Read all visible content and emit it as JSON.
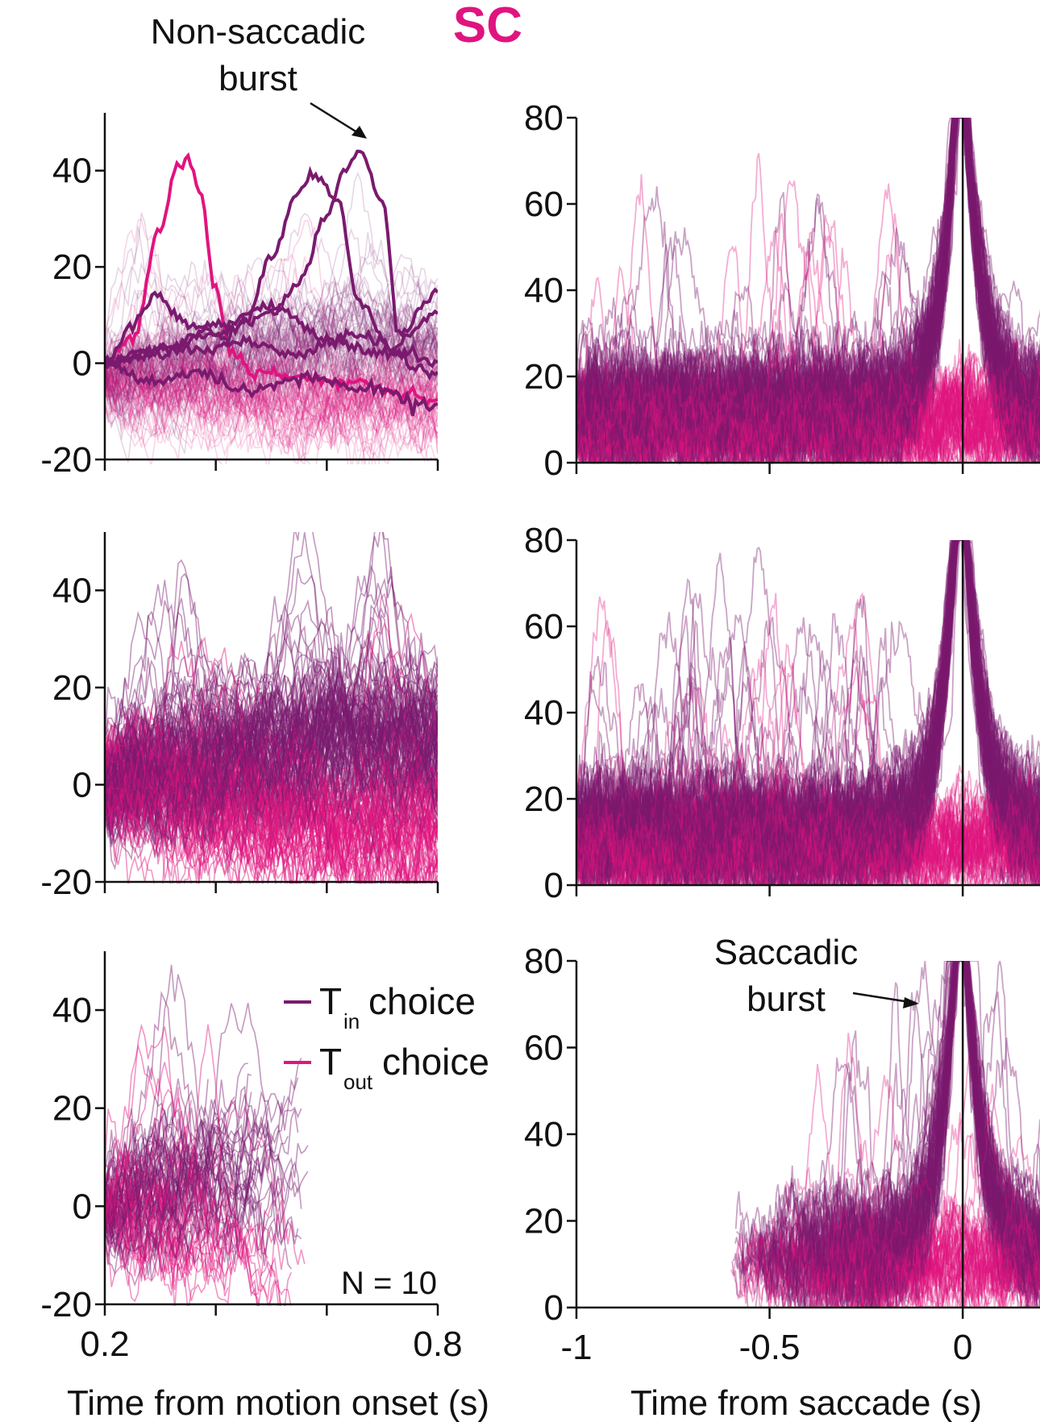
{
  "colors": {
    "tin": "#7a1a6e",
    "tout": "#e0147f",
    "axis": "#111111"
  },
  "chart_data": {
    "type": "line",
    "title": "SC",
    "legend": [
      {
        "key": "tin",
        "prefix": "T",
        "subscript": "in",
        "label": "choice"
      },
      {
        "key": "tout",
        "prefix": "T",
        "subscript": "out",
        "label": "choice"
      }
    ],
    "annotations": [
      {
        "panel": "top-left",
        "lines": [
          "Non-saccadic",
          "burst"
        ]
      },
      {
        "panel": "bottom-right",
        "lines": [
          "Saccadic",
          "burst"
        ]
      }
    ],
    "n_label": "N = 10",
    "left_column": {
      "xlabel": "Time from motion onset (s)",
      "xlim": [
        0.2,
        0.8
      ],
      "xticks": [
        0.2,
        0.4,
        0.6,
        0.8
      ],
      "xtick_labels": [
        "0.2",
        "",
        "",
        "0.8"
      ],
      "ylim": [
        -20,
        52
      ],
      "yticks": [
        -20,
        0,
        20,
        40
      ],
      "ytick_labels": [
        "-20",
        "0",
        "20",
        "40"
      ],
      "panels": [
        {
          "name": "top-left",
          "highlighted_traces": [
            {
              "series": "tout",
              "x": [
                0.2,
                0.25,
                0.3,
                0.33,
                0.35,
                0.37,
                0.4,
                0.43,
                0.47,
                0.55,
                0.65,
                0.75,
                0.8
              ],
              "y": [
                0,
                5,
                28,
                41,
                42,
                36,
                15,
                2,
                -2,
                -3,
                -4,
                -6,
                -8
              ]
            },
            {
              "series": "tin",
              "x": [
                0.2,
                0.3,
                0.4,
                0.45,
                0.5,
                0.55,
                0.58,
                0.62,
                0.66,
                0.72,
                0.8
              ],
              "y": [
                0,
                2,
                3,
                8,
                22,
                36,
                39,
                34,
                12,
                3,
                0
              ]
            },
            {
              "series": "tin",
              "x": [
                0.2,
                0.3,
                0.4,
                0.5,
                0.55,
                0.6,
                0.63,
                0.66,
                0.7,
                0.73,
                0.8
              ],
              "y": [
                0,
                3,
                6,
                10,
                17,
                30,
                40,
                44,
                34,
                6,
                15
              ]
            },
            {
              "series": "tin",
              "x": [
                0.2,
                0.25,
                0.29,
                0.35,
                0.45,
                0.55,
                0.65,
                0.8
              ],
              "y": [
                0,
                8,
                14,
                8,
                4,
                2,
                6,
                -2
              ]
            },
            {
              "series": "tin",
              "x": [
                0.2,
                0.3,
                0.4,
                0.5,
                0.6,
                0.7,
                0.8
              ],
              "y": [
                0,
                3,
                8,
                12,
                5,
                2,
                10
              ]
            },
            {
              "series": "tin",
              "x": [
                0.2,
                0.28,
                0.36,
                0.46,
                0.56,
                0.66,
                0.8
              ],
              "y": [
                0,
                -4,
                -2,
                -6,
                -3,
                -5,
                -9
              ]
            }
          ],
          "background_traces": {
            "series": [
              "tin",
              "tout"
            ],
            "count": 120,
            "y_range": [
              -18,
              50
            ]
          }
        },
        {
          "name": "middle-left",
          "background_traces": {
            "series": [
              "tin",
              "tout"
            ],
            "count": 170,
            "y_range": [
              -20,
              52
            ]
          }
        },
        {
          "name": "bottom-left",
          "x_end": 0.57,
          "background_traces": {
            "series": [
              "tin",
              "tout"
            ],
            "count": 90,
            "y_range": [
              -16,
              42
            ]
          }
        }
      ]
    },
    "right_column": {
      "xlabel": "Time from saccade (s)",
      "xlim": [
        -1,
        0.2
      ],
      "xticks": [
        -1,
        -0.5,
        0
      ],
      "xtick_labels": [
        "-1",
        "-0.5",
        "0"
      ],
      "ylim": [
        0,
        80
      ],
      "yticks": [
        0,
        20,
        40,
        60,
        80
      ],
      "ytick_labels": [
        "0",
        "20",
        "40",
        "60",
        "80"
      ],
      "saccade_line_x": 0,
      "panels": [
        {
          "name": "top-right",
          "x_start": -1,
          "peak_clip": 80,
          "background_traces": {
            "series": [
              "tin",
              "tout"
            ],
            "count": 170
          }
        },
        {
          "name": "middle-right",
          "x_start": -1,
          "peak_clip": 80,
          "background_traces": {
            "series": [
              "tin",
              "tout"
            ],
            "count": 170
          }
        },
        {
          "name": "bottom-right",
          "x_start": -0.6,
          "peak_clip": 80,
          "background_traces": {
            "series": [
              "tin",
              "tout"
            ],
            "count": 140
          }
        }
      ]
    }
  }
}
